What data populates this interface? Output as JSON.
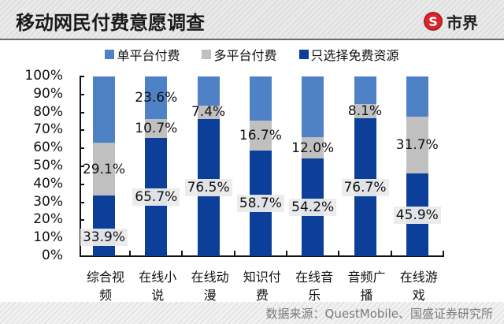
{
  "header": {
    "title": "移动网民付费意愿调查",
    "logo_glyph": "S",
    "logo_text": "市界"
  },
  "colors": {
    "single_platform": "#4f81c7",
    "multi_platform": "#c0c0c0",
    "free_only": "#0b3f9a",
    "logo_red": "#d9262c"
  },
  "legend": [
    {
      "label": "单平台付费",
      "color": "#4f81c7"
    },
    {
      "label": "多平台付费",
      "color": "#c0c0c0"
    },
    {
      "label": "只选择免费资源",
      "color": "#0b3f9a"
    }
  ],
  "y_ticks": [
    "100%",
    "90%",
    "80%",
    "70%",
    "60%",
    "50%",
    "40%",
    "30%",
    "20%",
    "10%",
    "0%"
  ],
  "categories": [
    {
      "line1": "综合视",
      "line2": "频"
    },
    {
      "line1": "在线小",
      "line2": "说"
    },
    {
      "line1": "在线动",
      "line2": "漫"
    },
    {
      "line1": "知识付",
      "line2": "费"
    },
    {
      "line1": "在线音",
      "line2": "乐"
    },
    {
      "line1": "音频广",
      "line2": "播"
    },
    {
      "line1": "在线游",
      "line2": "戏"
    }
  ],
  "labels": {
    "free": [
      "33.9%",
      "65.7%",
      "76.5%",
      "58.7%",
      "54.2%",
      "76.7%",
      "45.9%"
    ],
    "multi": [
      "29.1%",
      "10.7%",
      "7.4%",
      "16.7%",
      "12.0%",
      "8.1%",
      "31.7%"
    ],
    "single": [
      "",
      "23.6%",
      "",
      "",
      "",
      "",
      ""
    ]
  },
  "footer": {
    "source": "数据来源：QuestMobile、国盛证券研究所"
  },
  "chart_data": {
    "type": "bar",
    "stacked": true,
    "title": "移动网民付费意愿调查",
    "categories": [
      "综合视频",
      "在线小说",
      "在线动漫",
      "知识付费",
      "在线音乐",
      "音频广播",
      "在线游戏"
    ],
    "series": [
      {
        "name": "只选择免费资源",
        "color": "#0b3f9a",
        "values": [
          33.9,
          65.7,
          76.5,
          58.7,
          54.2,
          76.7,
          45.9
        ]
      },
      {
        "name": "多平台付费",
        "color": "#c0c0c0",
        "values": [
          29.1,
          10.7,
          7.4,
          16.7,
          12.0,
          8.1,
          31.7
        ]
      },
      {
        "name": "单平台付费",
        "color": "#4f81c7",
        "values": [
          37.0,
          23.6,
          16.1,
          24.6,
          33.8,
          15.2,
          22.4
        ]
      }
    ],
    "xlabel": "",
    "ylabel": "",
    "ylim": [
      0,
      100
    ],
    "yticks": [
      "0%",
      "10%",
      "20%",
      "30%",
      "40%",
      "50%",
      "60%",
      "70%",
      "80%",
      "90%",
      "100%"
    ],
    "grid": false,
    "legend_position": "top",
    "source": "数据来源：QuestMobile、国盛证券研究所"
  }
}
